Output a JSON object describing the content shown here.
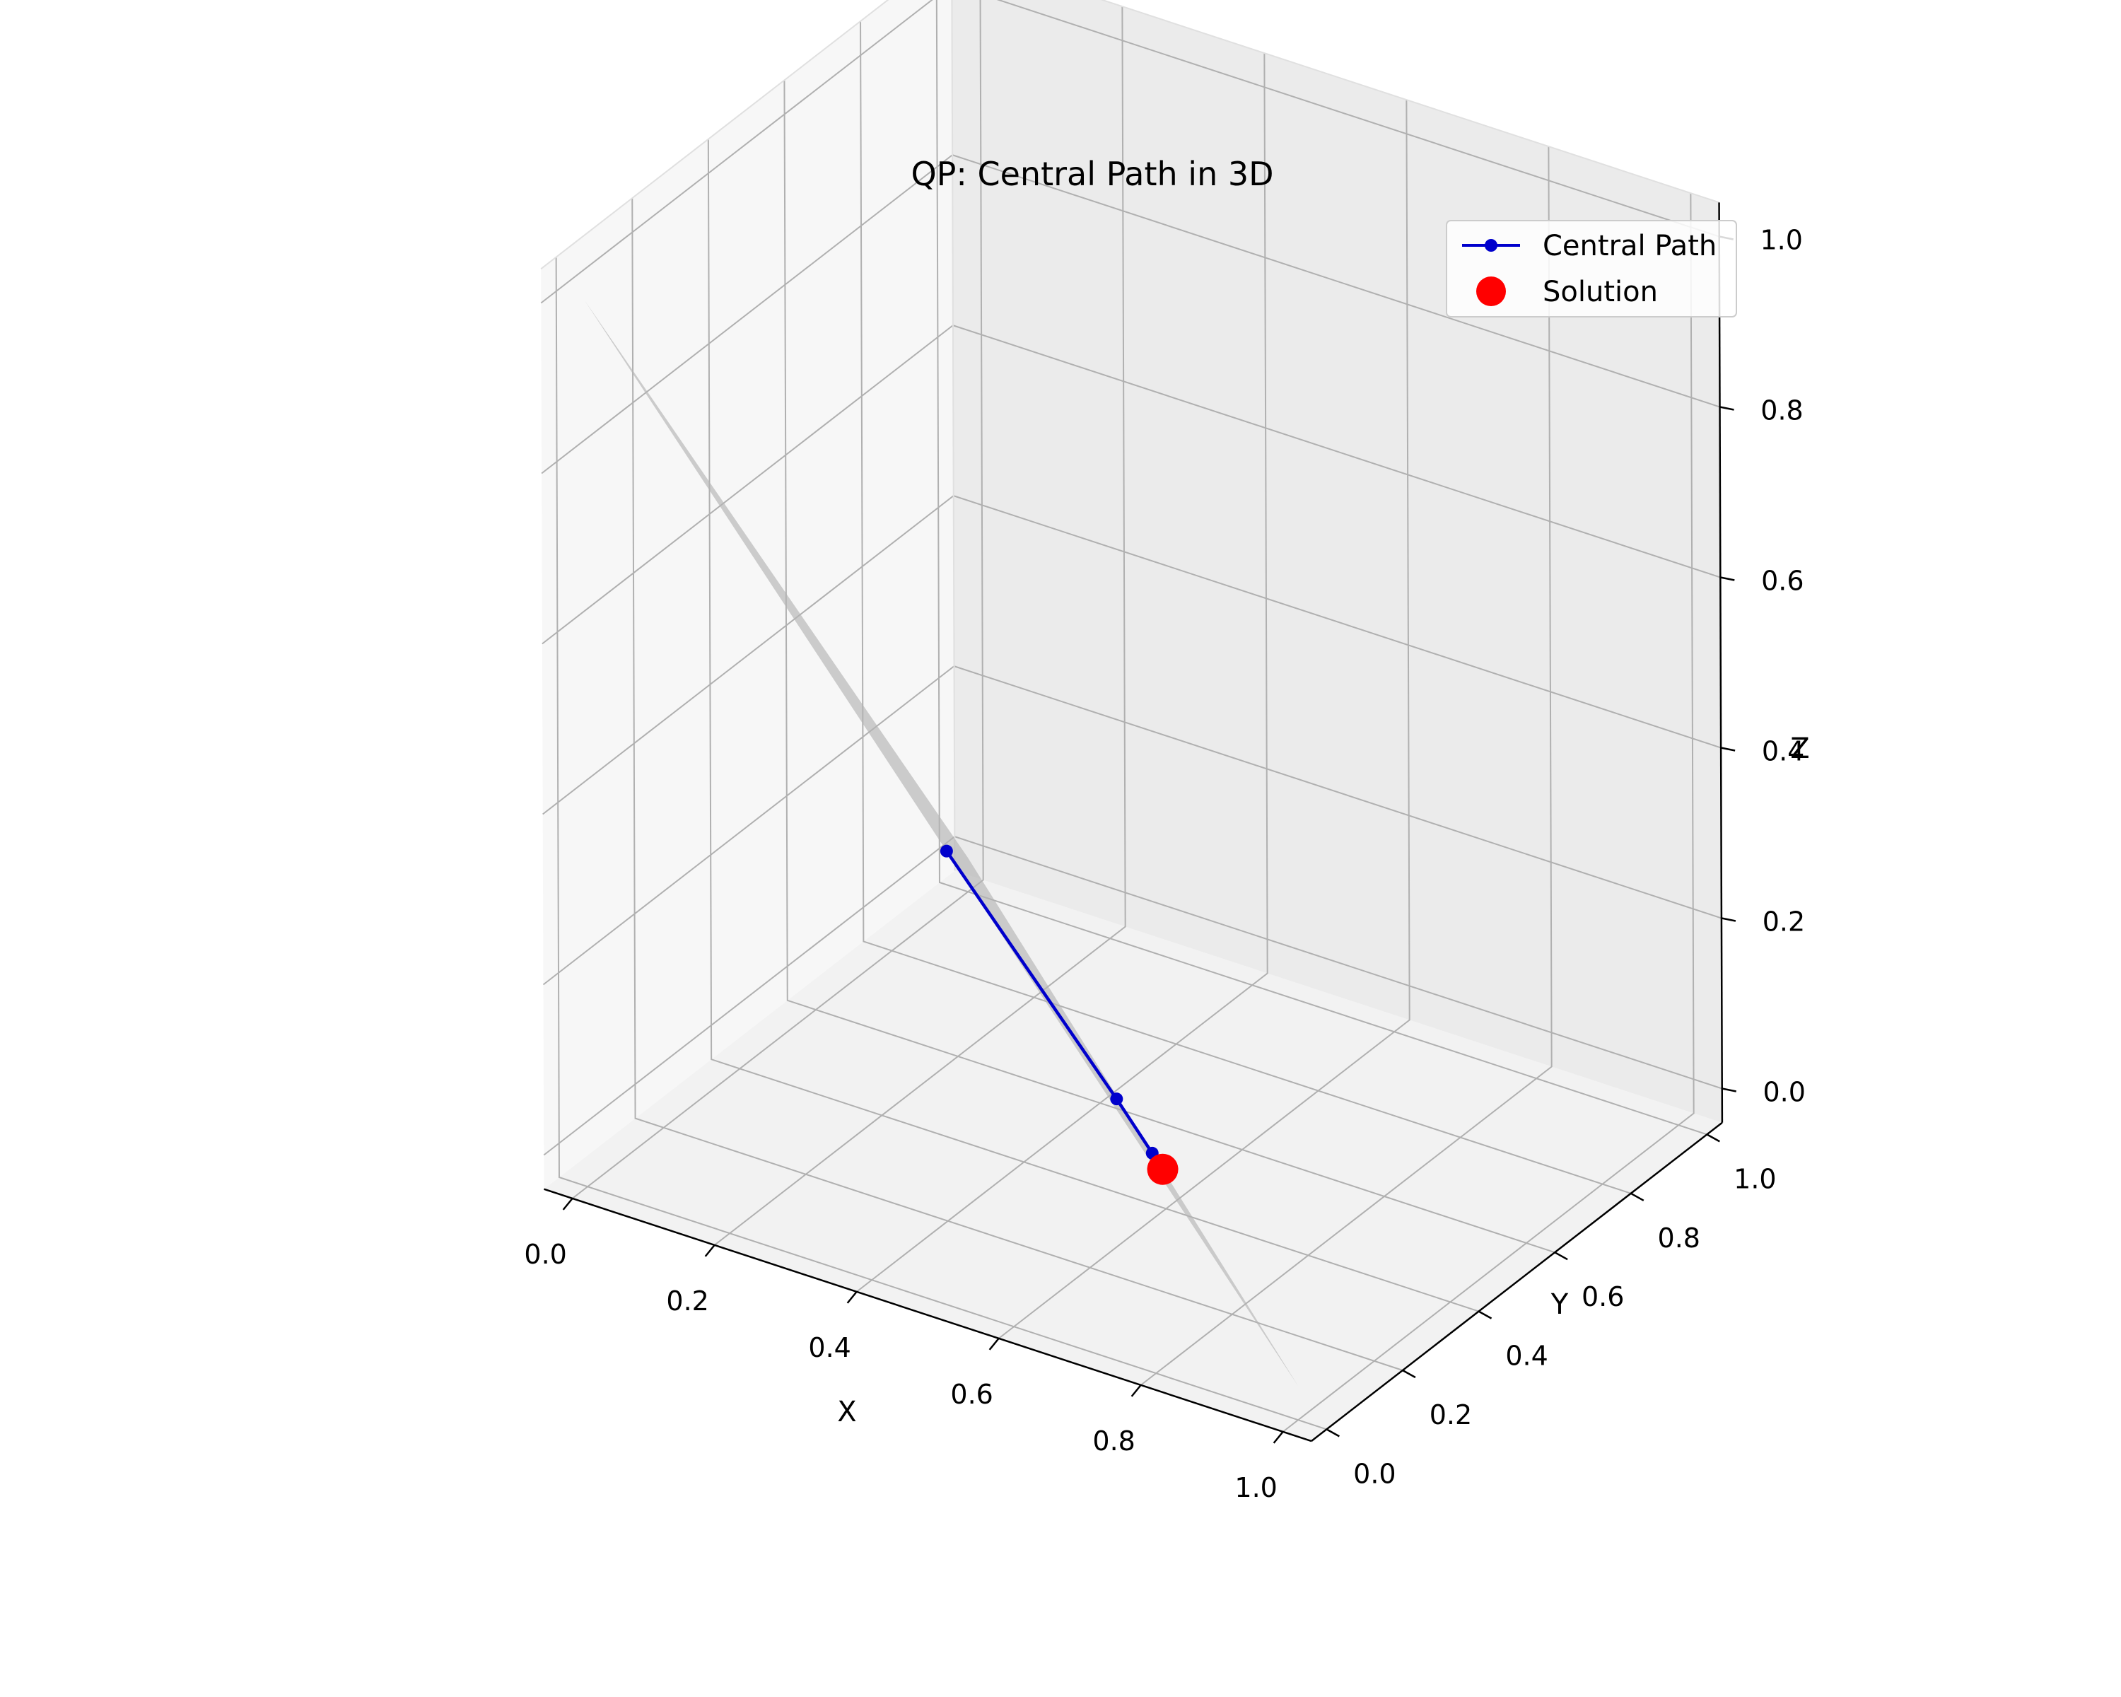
{
  "chart_data": {
    "type": "line",
    "projection": "3d",
    "title": "QP: Central Path in 3D",
    "xlabel": "X",
    "ylabel": "Y",
    "zlabel": "Z",
    "xlim": [
      0,
      1
    ],
    "ylim": [
      0,
      1
    ],
    "zlim": [
      0,
      1
    ],
    "xticks": [
      "0.0",
      "0.2",
      "0.4",
      "0.6",
      "0.8",
      "1.0"
    ],
    "yticks": [
      "0.0",
      "0.2",
      "0.4",
      "0.6",
      "0.8",
      "1.0"
    ],
    "zticks": [
      "0.0",
      "0.2",
      "0.4",
      "0.6",
      "0.8",
      "1.0"
    ],
    "grid": true,
    "legend_position": "top-right",
    "surface": {
      "description_plane": "x + y + z = 1",
      "color": "#b3b3b3",
      "vertices": [
        [
          1,
          0,
          0
        ],
        [
          0,
          1,
          0
        ],
        [
          0,
          0,
          1
        ]
      ]
    },
    "series": [
      {
        "name": "Central Path",
        "color": "#0000cc",
        "marker": "circle",
        "points": [
          {
            "x": 0.33,
            "y": 0.33,
            "z": 0.33
          },
          {
            "x": 0.52,
            "y": 0.42,
            "z": 0.06
          },
          {
            "x": 0.57,
            "y": 0.42,
            "z": 0.01
          },
          {
            "x": 0.59,
            "y": 0.41,
            "z": 0.0
          }
        ]
      },
      {
        "name": "Solution",
        "color": "#ff0000",
        "marker": "large-circle",
        "points": [
          {
            "x": 0.59,
            "y": 0.41,
            "z": 0.0
          }
        ]
      }
    ]
  }
}
